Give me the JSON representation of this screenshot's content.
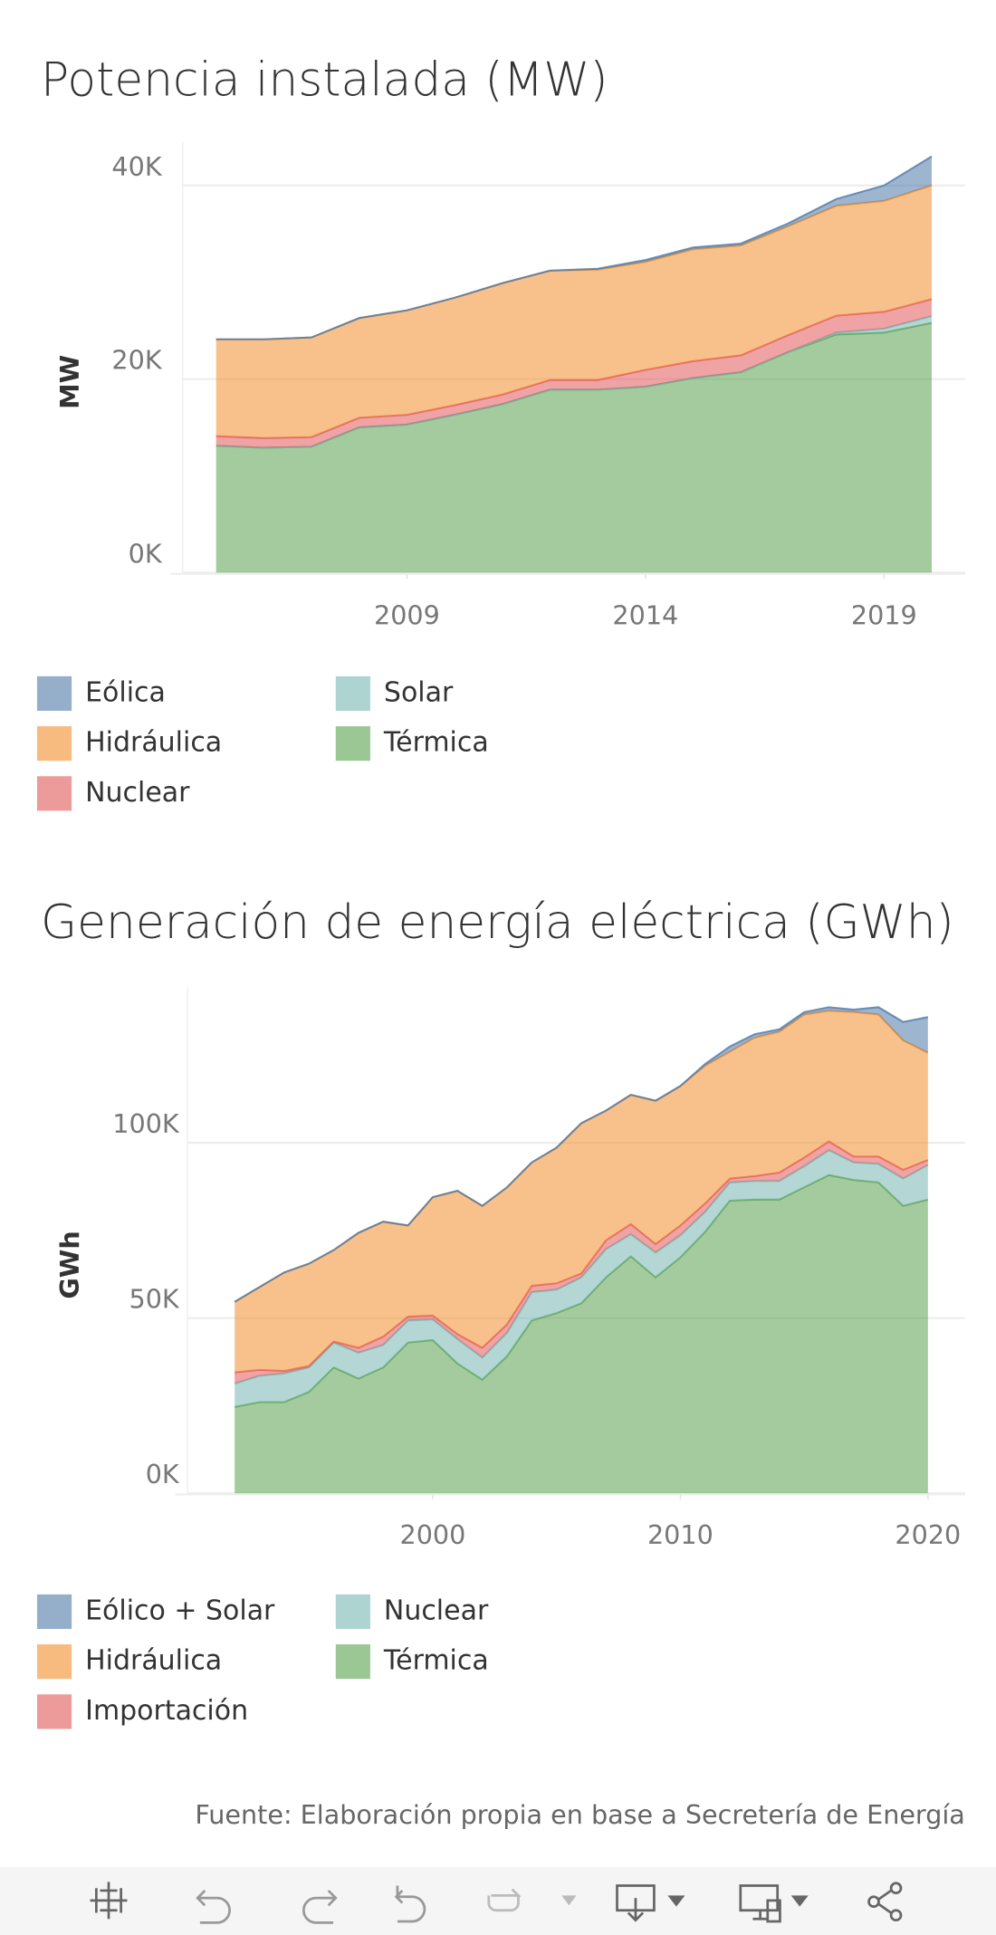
{
  "chart_data": [
    {
      "type": "area",
      "stacked": true,
      "title": "Potencia instalada (MW)",
      "y_label": "MW",
      "x": [
        2005,
        2006,
        2007,
        2008,
        2009,
        2010,
        2011,
        2012,
        2013,
        2014,
        2015,
        2016,
        2017,
        2018,
        2019,
        2020
      ],
      "xlim": [
        2004.3,
        2020.7
      ],
      "xticks": [
        2009,
        2014,
        2019
      ],
      "ylim": [
        0,
        44500
      ],
      "yticks": [
        {
          "value": 0,
          "label": "0K"
        },
        {
          "value": 20000,
          "label": "20K"
        },
        {
          "value": 40000,
          "label": "40K"
        }
      ],
      "grid": true,
      "legend": "bottom",
      "series": [
        {
          "name": "Eólica",
          "color": "#4e79a7",
          "values": [
            0,
            0,
            0,
            0,
            0,
            0,
            0,
            0,
            100,
            200,
            200,
            200,
            300,
            700,
            1600,
            3000
          ]
        },
        {
          "name": "Hidráulica",
          "color": "#f28e2b",
          "values": [
            10000,
            10200,
            10300,
            10300,
            10800,
            11100,
            11500,
            11300,
            11400,
            11150,
            11550,
            11350,
            11250,
            11350,
            11450,
            11750
          ]
        },
        {
          "name": "Nuclear",
          "color": "#e15759",
          "values": [
            1000,
            1000,
            1000,
            1000,
            1000,
            1000,
            1000,
            1000,
            1000,
            1750,
            1750,
            1750,
            1750,
            1750,
            1750,
            1750
          ]
        },
        {
          "name": "Solar",
          "color": "#76b7b2",
          "values": [
            0,
            0,
            0,
            0,
            0,
            0,
            0,
            0,
            0,
            0,
            0,
            0,
            0,
            200,
            400,
            700
          ]
        },
        {
          "name": "Térmica",
          "color": "#59a14f",
          "values": [
            13100,
            12900,
            13000,
            15000,
            15300,
            16300,
            17400,
            18900,
            18900,
            19200,
            20100,
            20700,
            22800,
            24600,
            24800,
            25800
          ]
        }
      ]
    },
    {
      "type": "area",
      "stacked": true,
      "title": "Generación de energía eléctrica (GWh)",
      "y_label": "GWh",
      "x": [
        1992,
        1993,
        1994,
        1995,
        1996,
        1997,
        1998,
        1999,
        2000,
        2001,
        2002,
        2003,
        2004,
        2005,
        2006,
        2007,
        2008,
        2009,
        2010,
        2011,
        2012,
        2013,
        2014,
        2015,
        2016,
        2017,
        2018,
        2019,
        2020
      ],
      "xlim": [
        1990.1,
        2021.5
      ],
      "xticks": [
        2000,
        2010,
        2020
      ],
      "ylim": [
        0,
        144400
      ],
      "yticks": [
        {
          "value": 0,
          "label": "0K"
        },
        {
          "value": 50000,
          "label": "50K"
        },
        {
          "value": 100000,
          "label": "100K"
        }
      ],
      "grid": true,
      "legend": "bottom",
      "series": [
        {
          "name": "Eólico + Solar",
          "color": "#4e79a7",
          "values": [
            0,
            0,
            0,
            0,
            0,
            0,
            0,
            0,
            0,
            0,
            0,
            0,
            0,
            0,
            0,
            0,
            0,
            0,
            0,
            500,
            1500,
            1000,
            700,
            700,
            1000,
            700,
            2100,
            5300,
            10200
          ]
        },
        {
          "name": "Hidráulica",
          "color": "#f28e2b",
          "values": [
            20100,
            23600,
            28100,
            29200,
            26100,
            32800,
            32800,
            26000,
            33800,
            40900,
            40500,
            39100,
            35200,
            38700,
            42900,
            37000,
            36900,
            40900,
            39800,
            39300,
            36200,
            39500,
            40200,
            40800,
            37300,
            41200,
            40500,
            36900,
            30600
          ]
        },
        {
          "name": "Importación",
          "color": "#e15759",
          "values": [
            3200,
            1700,
            700,
            400,
            300,
            1400,
            2400,
            1100,
            1100,
            1400,
            2800,
            2400,
            1800,
            1800,
            1100,
            2500,
            2900,
            2400,
            2800,
            2400,
            1100,
            1400,
            2400,
            2500,
            2500,
            1700,
            2100,
            2500,
            1400
          ]
        },
        {
          "name": "Nuclear",
          "color": "#76b7b2",
          "values": [
            6700,
            7500,
            8200,
            7000,
            7100,
            7400,
            6400,
            6300,
            5900,
            7000,
            6300,
            6700,
            8100,
            6700,
            7400,
            8100,
            6300,
            7100,
            6300,
            5700,
            5200,
            5300,
            5300,
            6000,
            7100,
            5000,
            5300,
            7800,
            9900
          ]
        },
        {
          "name": "Térmica",
          "color": "#59a14f",
          "values": [
            24600,
            26000,
            26000,
            28900,
            35900,
            32700,
            35900,
            43000,
            43700,
            37000,
            32400,
            39100,
            49300,
            51400,
            54200,
            61600,
            67600,
            61600,
            67300,
            74600,
            83500,
            83800,
            83800,
            87300,
            90800,
            89400,
            88700,
            82000,
            83800
          ]
        }
      ]
    }
  ],
  "source": "Fuente: Elaboración propia en base a Secretería de Energía"
}
